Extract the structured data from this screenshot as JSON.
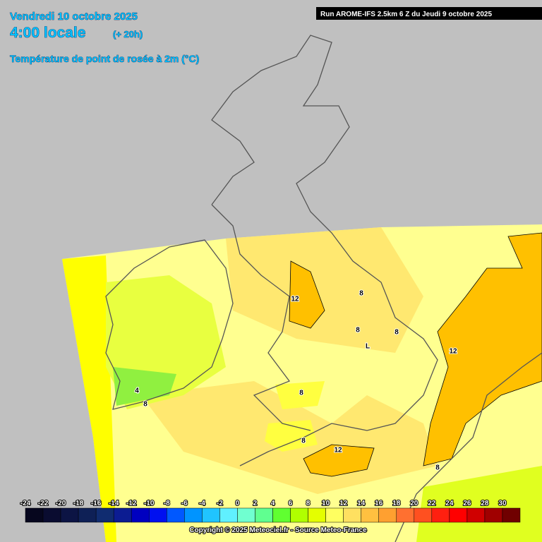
{
  "header": {
    "date": "Vendredi 10 octobre 2025",
    "time": "4:00 locale",
    "lead": "(+ 20h)",
    "title": "Température de point de rosée à 2m (°C)",
    "run": "Run AROME-IFS 2.5km 6 Z du Jeudi 9 octobre 2025"
  },
  "map": {
    "contour_labels": [
      12,
      8,
      8,
      8,
      12,
      8,
      4,
      8,
      8,
      12,
      8
    ],
    "low_marker": "L"
  },
  "legend": {
    "ticks": [
      -24,
      -22,
      -20,
      -18,
      -16,
      -14,
      -12,
      -10,
      -8,
      -6,
      -4,
      -2,
      0,
      2,
      4,
      6,
      8,
      10,
      12,
      14,
      16,
      18,
      20,
      22,
      24,
      26,
      28,
      30
    ],
    "colors": [
      "#06061e",
      "#0a0c30",
      "#0c1444",
      "#0e2056",
      "#102c70",
      "#0c1c92",
      "#0000c0",
      "#0010f0",
      "#0058ff",
      "#0094ff",
      "#20c4ff",
      "#60f0ff",
      "#70ffd0",
      "#60ff90",
      "#60ff30",
      "#b0ff00",
      "#e4ff00",
      "#ffff60",
      "#ffe060",
      "#ffc040",
      "#ffa030",
      "#ff7030",
      "#ff5020",
      "#ff2010",
      "#ff0000",
      "#d00000",
      "#a00000",
      "#700000"
    ]
  },
  "footer": {
    "copyright": "Copyright © 2025 Meteociel.fr - Source Meteo-France"
  }
}
